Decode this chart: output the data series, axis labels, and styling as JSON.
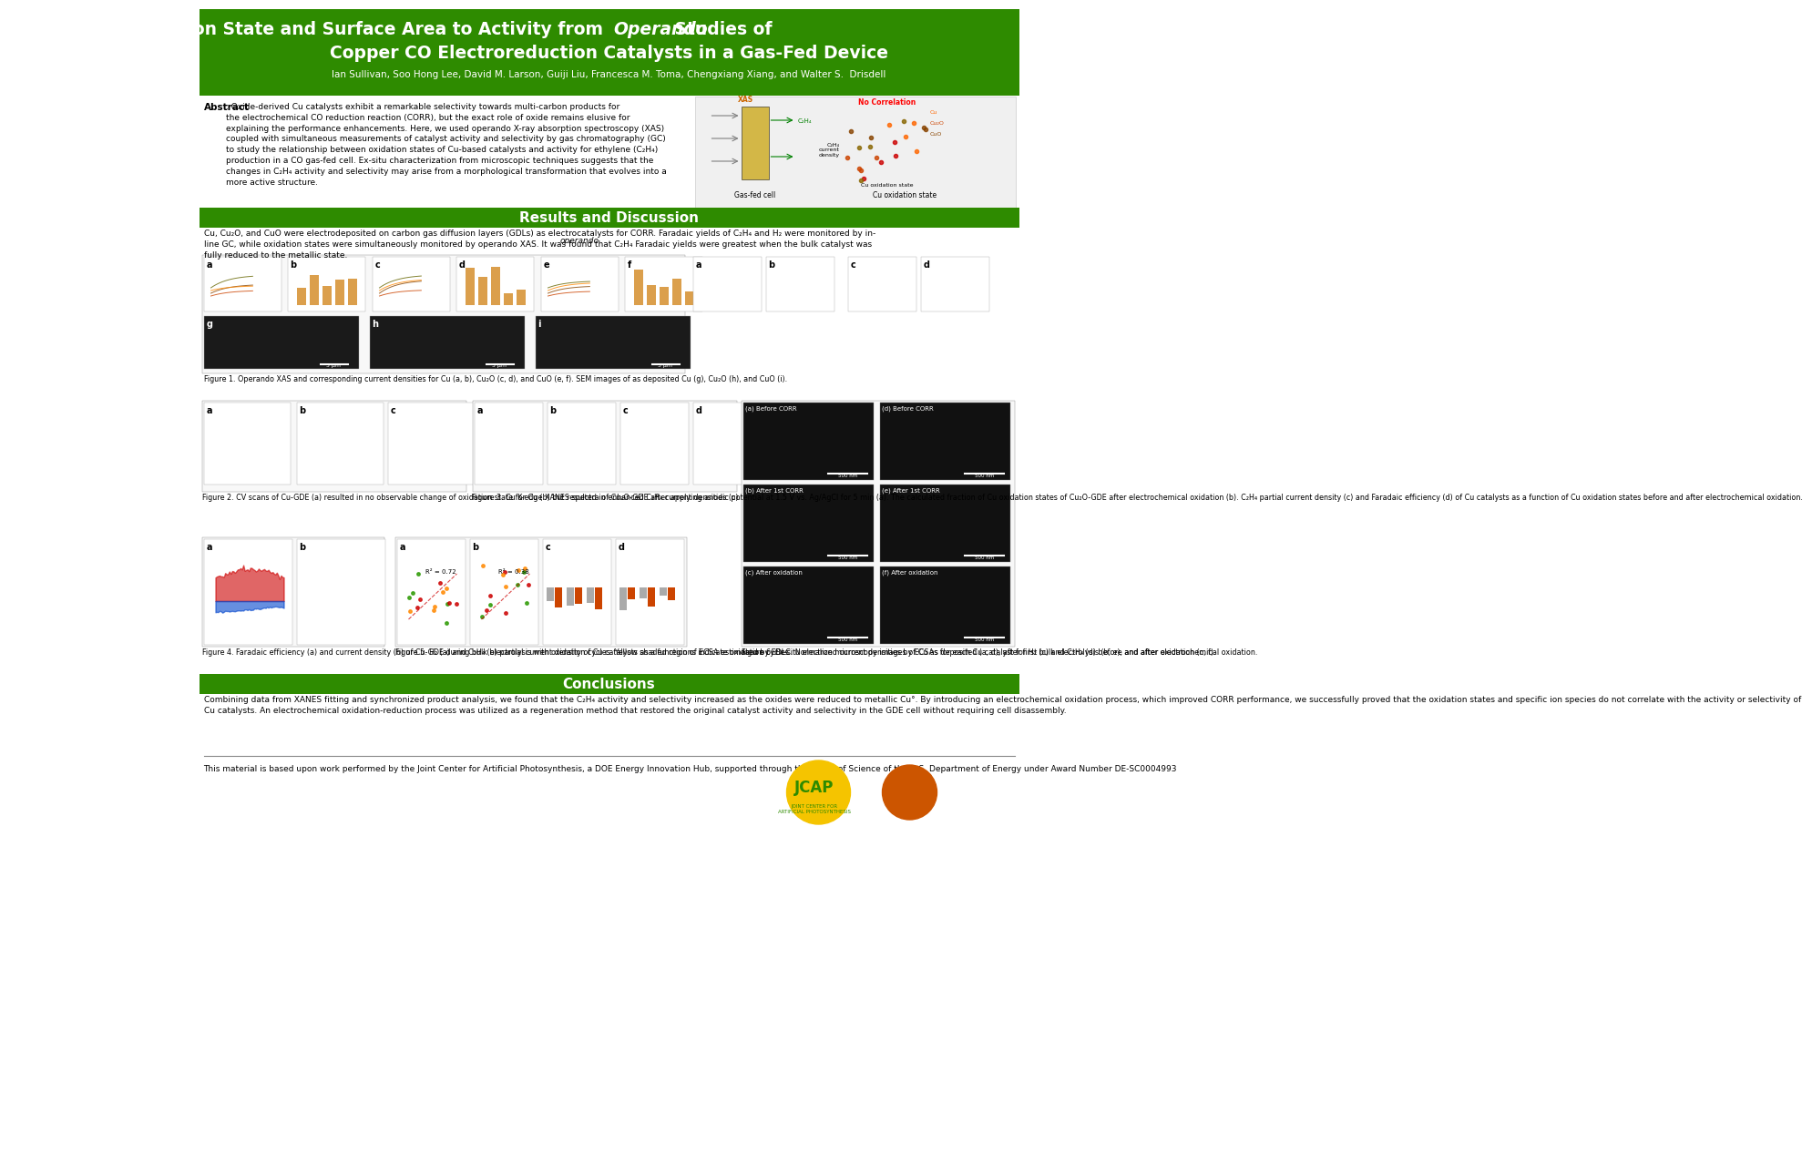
{
  "title_line1": "Correlating Oxidation State and Surface Area to Activity from ",
  "title_italic": "Operando",
  "title_line1_end": " Studies of",
  "title_line2": "Copper CO Electroreduction Catalysts in a Gas-Fed Device",
  "authors": "Ian Sullivan, Soo Hong Lee, David M. Larson, Guiji Liu, Francesca M. Toma, Chengxiang Xiang, and Walter S.  Drisdell",
  "header_bg": "#2e8b00",
  "header_text_color": "#ffffff",
  "body_bg": "#ffffff",
  "body_text_color": "#000000",
  "section_bg": "#2e8b00",
  "section_text_color": "#ffffff",
  "abstract_title": "Abstract",
  "abstract_text": "Oxide-derived Cu catalysts exhibit a remarkable selectivity towards multi-carbon products for the electrochemical CO reduction reaction (CORR), but the exact role of oxide remains elusive for explaining the performance enhancements. Here, we used operando X-ray absorption spectroscopy (XAS) coupled with simultaneous measurements of catalyst activity and selectivity by gas chromatography (GC) to study the relationship between oxidation states of Cu-based catalysts and activity for ethylene (C₂H₄) production in a CO gas-fed cell. Ex-situ characterization from microscopic techniques suggests that the changes in C₂H₄ activity and selectivity may arise from a morphological transformation that evolves into a more active structure.",
  "results_title": "Results and Discussion",
  "results_text": "Cu, Cu₂O, and CuO were electrodeposited on carbon gas diffusion layers (GDLs) as electrocatalysts for CORR. Faradaic yields of C₂H₄ and H₂ were monitored by in-line GC, while oxidation states were simultaneously monitored by operando XAS. It was found that C₂H₄ Faradaic yields were greatest when the bulk catalyst was fully reduced to the metallic state.",
  "fig1_caption": "Figure 1. Operando XAS and corresponding current densities for Cu (a, b), Cu₂O (c, d), and CuO (e, f). SEM images of as deposited Cu (g), Cu₂O (h), and CuO (i).",
  "fig2_caption": "Figure 2. CV scans of Cu-GDE (a) resulted in no observable change of oxidation state for Cu (b) but resulted in enhanced C₂H₄ current densities (c).",
  "fig3_caption": "Figure 3. Cu K-edge XANES spectra of Cu₂O-GDE after applying anodic potential at 1.5 V vs. Ag/AgCl for 5 min (a). The calculated fraction of Cu oxidation states of Cu₂O-GDE after electrochemical oxidation (b). C₂H₄ partial current density (c) and Faradaic efficiency (d) of Cu catalysts as a function of Cu oxidation states before and after electrochemical oxidation.",
  "fig4_caption": "Figure 4. Faradaic efficiency (a) and current density (b) of Cu-GDE during bulk electrolysis with oxidation cycles. Yellow shaded regions indicate oxidation cycles",
  "fig5_caption": "Figure 5. H₂ (a) and C₂H₄ (b) partial current density of Cu catalysts as a function of ECSA estimated by EDLC. Normalized current densities by ECSAs for each Cu catalyst for H₂ (c) and C₂H₄ (d) before and after electrochemical oxidation.",
  "fig6_caption": "Figure 6. Ex-situ electron microscopy images of Cu as deposited (a, d), after first bulk electrolysis (b, e), and after oxidation (c, f).",
  "conclusions_title": "Conclusions",
  "conclusions_text": "Combining data from XANES fitting and synchronized product analysis, we found that the C₂H₄ activity and selectivity increased as the oxides were reduced to metallic Cu°. By introducing an electrochemical oxidation process, which improved CORR performance, we successfully proved that the oxidation states and specific ion species do not correlate with the activity or selectivity of Cu catalysts. An electrochemical oxidation-reduction process was utilized as a regeneration method that restored the original catalyst activity and selectivity in the GDE cell without requiring cell disassembly.",
  "funding_text": "This material is based upon work performed by the Joint Center for Artificial Photosynthesis, a DOE Energy Innovation Hub, supported through the Office of Science of the U.S. Department of Energy under Award Number DE-SC0004993",
  "green_color": "#2e8b00",
  "light_green": "#3a9900"
}
